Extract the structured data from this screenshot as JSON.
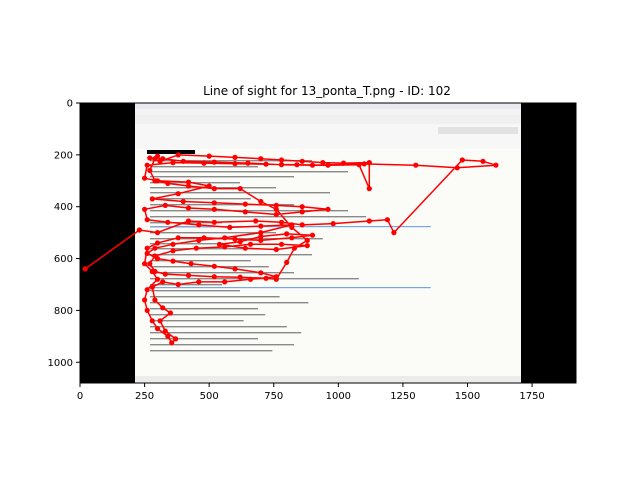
{
  "chart_data": {
    "type": "scatter",
    "title": "Line of sight for 13_ponta_T.png - ID: 102",
    "xlabel": "",
    "ylabel": "",
    "xlim": [
      0,
      1920
    ],
    "ylim": [
      1080,
      0
    ],
    "y_inverted": true,
    "grid": false,
    "legend": "none",
    "x_ticks": [
      "0",
      "250",
      "500",
      "750",
      "1000",
      "1250",
      "1500",
      "1750"
    ],
    "y_ticks": [
      "0",
      "200",
      "400",
      "600",
      "800",
      "1000"
    ],
    "background_image": {
      "description": "e-mail client screenshot",
      "extent": [
        208,
        1712,
        1080,
        0
      ]
    },
    "colors": {
      "line": "#ff0000",
      "letterbox": "#000000",
      "page": "#ffffff"
    },
    "series": [
      {
        "points": [
          [
            20,
            640
          ],
          [
            230,
            490
          ],
          [
            300,
            500
          ],
          [
            420,
            455
          ],
          [
            520,
            460
          ],
          [
            680,
            455
          ],
          [
            780,
            460
          ],
          [
            860,
            470
          ],
          [
            980,
            465
          ],
          [
            1120,
            455
          ],
          [
            1190,
            450
          ],
          [
            1215,
            500
          ],
          [
            1480,
            220
          ],
          [
            1560,
            225
          ],
          [
            1610,
            240
          ],
          [
            1460,
            250
          ],
          [
            1300,
            240
          ],
          [
            1100,
            235
          ],
          [
            900,
            240
          ],
          [
            780,
            238
          ],
          [
            650,
            232
          ],
          [
            520,
            228
          ],
          [
            400,
            225
          ],
          [
            320,
            215
          ],
          [
            270,
            212
          ],
          [
            310,
            225
          ],
          [
            380,
            200
          ],
          [
            500,
            205
          ],
          [
            600,
            210
          ],
          [
            700,
            215
          ],
          [
            780,
            220
          ],
          [
            860,
            225
          ],
          [
            940,
            230
          ],
          [
            1020,
            232
          ],
          [
            1120,
            230
          ],
          [
            1120,
            330
          ],
          [
            1080,
            238
          ],
          [
            960,
            240
          ],
          [
            840,
            238
          ],
          [
            720,
            236
          ],
          [
            600,
            234
          ],
          [
            480,
            232
          ],
          [
            360,
            230
          ],
          [
            260,
            240
          ],
          [
            250,
            290
          ],
          [
            300,
            300
          ],
          [
            420,
            305
          ],
          [
            500,
            320
          ],
          [
            380,
            350
          ],
          [
            280,
            370
          ],
          [
            400,
            380
          ],
          [
            520,
            385
          ],
          [
            640,
            390
          ],
          [
            760,
            395
          ],
          [
            860,
            400
          ],
          [
            960,
            410
          ],
          [
            860,
            420
          ],
          [
            760,
            430
          ],
          [
            640,
            420
          ],
          [
            520,
            410
          ],
          [
            420,
            405
          ],
          [
            330,
            395
          ],
          [
            250,
            410
          ],
          [
            260,
            450
          ],
          [
            340,
            460
          ],
          [
            460,
            470
          ],
          [
            580,
            480
          ],
          [
            700,
            475
          ],
          [
            820,
            470
          ],
          [
            700,
            500
          ],
          [
            560,
            520
          ],
          [
            460,
            530
          ],
          [
            360,
            545
          ],
          [
            290,
            560
          ],
          [
            260,
            580
          ],
          [
            300,
            600
          ],
          [
            360,
            610
          ],
          [
            430,
            620
          ],
          [
            520,
            630
          ],
          [
            600,
            640
          ],
          [
            700,
            655
          ],
          [
            760,
            670
          ],
          [
            660,
            680
          ],
          [
            560,
            690
          ],
          [
            460,
            690
          ],
          [
            380,
            700
          ],
          [
            320,
            690
          ],
          [
            280,
            710
          ],
          [
            290,
            760
          ],
          [
            320,
            790
          ],
          [
            350,
            810
          ],
          [
            310,
            840
          ],
          [
            330,
            880
          ],
          [
            370,
            910
          ],
          [
            355,
            925
          ],
          [
            340,
            900
          ],
          [
            300,
            870
          ],
          [
            280,
            840
          ],
          [
            260,
            800
          ],
          [
            250,
            760
          ],
          [
            260,
            720
          ],
          [
            300,
            680
          ],
          [
            280,
            650
          ],
          [
            250,
            620
          ],
          [
            260,
            560
          ],
          [
            300,
            540
          ],
          [
            380,
            520
          ],
          [
            480,
            520
          ],
          [
            600,
            525
          ],
          [
            700,
            530
          ],
          [
            820,
            520
          ],
          [
            900,
            510
          ],
          [
            800,
            505
          ],
          [
            700,
            515
          ],
          [
            620,
            535
          ],
          [
            540,
            545
          ],
          [
            640,
            560
          ],
          [
            760,
            565
          ],
          [
            880,
            550
          ],
          [
            780,
            545
          ],
          [
            660,
            545
          ],
          [
            560,
            555
          ],
          [
            450,
            560
          ],
          [
            360,
            570
          ],
          [
            290,
            590
          ],
          [
            270,
            620
          ],
          [
            290,
            650
          ],
          [
            330,
            660
          ],
          [
            420,
            665
          ],
          [
            520,
            670
          ],
          [
            620,
            672
          ],
          [
            720,
            676
          ],
          [
            760,
            680
          ],
          [
            800,
            615
          ],
          [
            830,
            560
          ],
          [
            880,
            530
          ],
          [
            820,
            480
          ],
          [
            760,
            410
          ],
          [
            700,
            380
          ],
          [
            620,
            330
          ],
          [
            520,
            330
          ],
          [
            420,
            320
          ],
          [
            340,
            310
          ],
          [
            290,
            300
          ],
          [
            270,
            260
          ],
          [
            290,
            215
          ],
          [
            300,
            205
          ]
        ]
      }
    ]
  }
}
